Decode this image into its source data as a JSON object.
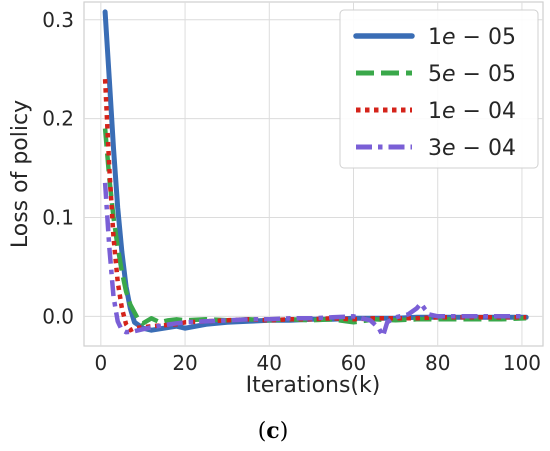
{
  "caption": {
    "open": "(",
    "letter": "c",
    "close": ")"
  },
  "chart_data": {
    "type": "line",
    "title": "",
    "xlabel": "Iterations(k)",
    "ylabel": "Loss of policy",
    "xlim": [
      -4,
      105
    ],
    "ylim": [
      -0.03,
      0.318
    ],
    "xticks": [
      0,
      20,
      40,
      60,
      80,
      100
    ],
    "yticks": [
      0.0,
      0.1,
      0.2,
      0.3
    ],
    "xtick_labels": [
      "0",
      "20",
      "40",
      "60",
      "80",
      "100"
    ],
    "ytick_labels": [
      "0.0",
      "0.1",
      "0.2",
      "0.3"
    ],
    "grid": true,
    "legend_position": "top-right",
    "series": [
      {
        "name": "1e − 05",
        "legend_parts": [
          "1",
          "e",
          " − 05"
        ],
        "color": "#3a6db5",
        "style": "solid",
        "x": [
          1,
          2,
          3,
          4,
          5,
          6,
          7,
          8,
          10,
          12,
          15,
          18,
          20,
          25,
          30,
          35,
          40,
          45,
          50,
          55,
          60,
          65,
          70,
          75,
          80,
          85,
          90,
          95,
          101
        ],
        "y": [
          0.308,
          0.24,
          0.17,
          0.11,
          0.065,
          0.03,
          0.008,
          -0.006,
          -0.012,
          -0.014,
          -0.012,
          -0.01,
          -0.012,
          -0.008,
          -0.006,
          -0.005,
          -0.004,
          -0.004,
          -0.003,
          -0.003,
          -0.002,
          -0.002,
          -0.002,
          -0.001,
          -0.001,
          -0.001,
          -0.001,
          -0.001,
          -0.001
        ]
      },
      {
        "name": "5e − 05",
        "legend_parts": [
          "5",
          "e",
          " − 05"
        ],
        "color": "#3aa84a",
        "style": "dashed",
        "x": [
          1,
          2,
          3,
          4,
          5,
          6,
          7,
          8,
          9,
          10,
          12,
          14,
          16,
          18,
          20,
          25,
          30,
          35,
          40,
          45,
          50,
          55,
          60,
          65,
          70,
          75,
          80,
          85,
          90,
          95,
          101
        ],
        "y": [
          0.19,
          0.14,
          0.1,
          0.07,
          0.045,
          0.025,
          0.012,
          0.004,
          -0.004,
          -0.007,
          -0.002,
          -0.006,
          -0.004,
          -0.003,
          -0.004,
          -0.003,
          -0.004,
          -0.003,
          -0.004,
          -0.003,
          -0.004,
          -0.003,
          -0.006,
          -0.003,
          -0.004,
          -0.003,
          -0.003,
          -0.003,
          -0.003,
          -0.003,
          -0.002
        ]
      },
      {
        "name": "1e − 04",
        "legend_parts": [
          "1",
          "e",
          " − 04"
        ],
        "color": "#d4231a",
        "style": "dotted",
        "x": [
          1,
          2,
          3,
          4,
          5,
          6,
          7,
          8,
          10,
          12,
          15,
          18,
          20,
          25,
          30,
          35,
          40,
          45,
          50,
          55,
          60,
          65,
          70,
          75,
          80,
          85,
          90,
          95,
          101
        ],
        "y": [
          0.24,
          0.15,
          0.08,
          0.035,
          0.008,
          -0.008,
          -0.014,
          -0.012,
          -0.011,
          -0.01,
          -0.009,
          -0.008,
          -0.006,
          -0.005,
          -0.004,
          -0.003,
          -0.004,
          -0.003,
          -0.003,
          -0.002,
          -0.003,
          -0.002,
          -0.002,
          -0.002,
          -0.001,
          -0.001,
          -0.001,
          -0.001,
          -0.001
        ]
      },
      {
        "name": "3e − 04",
        "legend_parts": [
          "3",
          "e",
          " − 04"
        ],
        "color": "#7a5fd6",
        "style": "dashdot",
        "x": [
          1,
          2,
          3,
          4,
          5,
          6,
          8,
          10,
          12,
          15,
          18,
          20,
          25,
          30,
          35,
          40,
          45,
          50,
          55,
          60,
          64,
          66,
          67,
          68,
          70,
          73,
          75,
          76,
          77,
          78,
          80,
          85,
          90,
          95,
          101
        ],
        "y": [
          0.135,
          0.07,
          0.02,
          -0.005,
          -0.014,
          -0.016,
          -0.015,
          -0.013,
          -0.011,
          -0.009,
          -0.007,
          -0.006,
          -0.005,
          -0.004,
          -0.003,
          -0.003,
          -0.002,
          -0.002,
          -0.001,
          0.0,
          -0.004,
          -0.012,
          -0.02,
          -0.006,
          -0.001,
          0.002,
          0.008,
          0.013,
          0.007,
          0.002,
          0.0,
          0.0,
          0.0,
          0.0,
          0.0
        ]
      }
    ]
  }
}
